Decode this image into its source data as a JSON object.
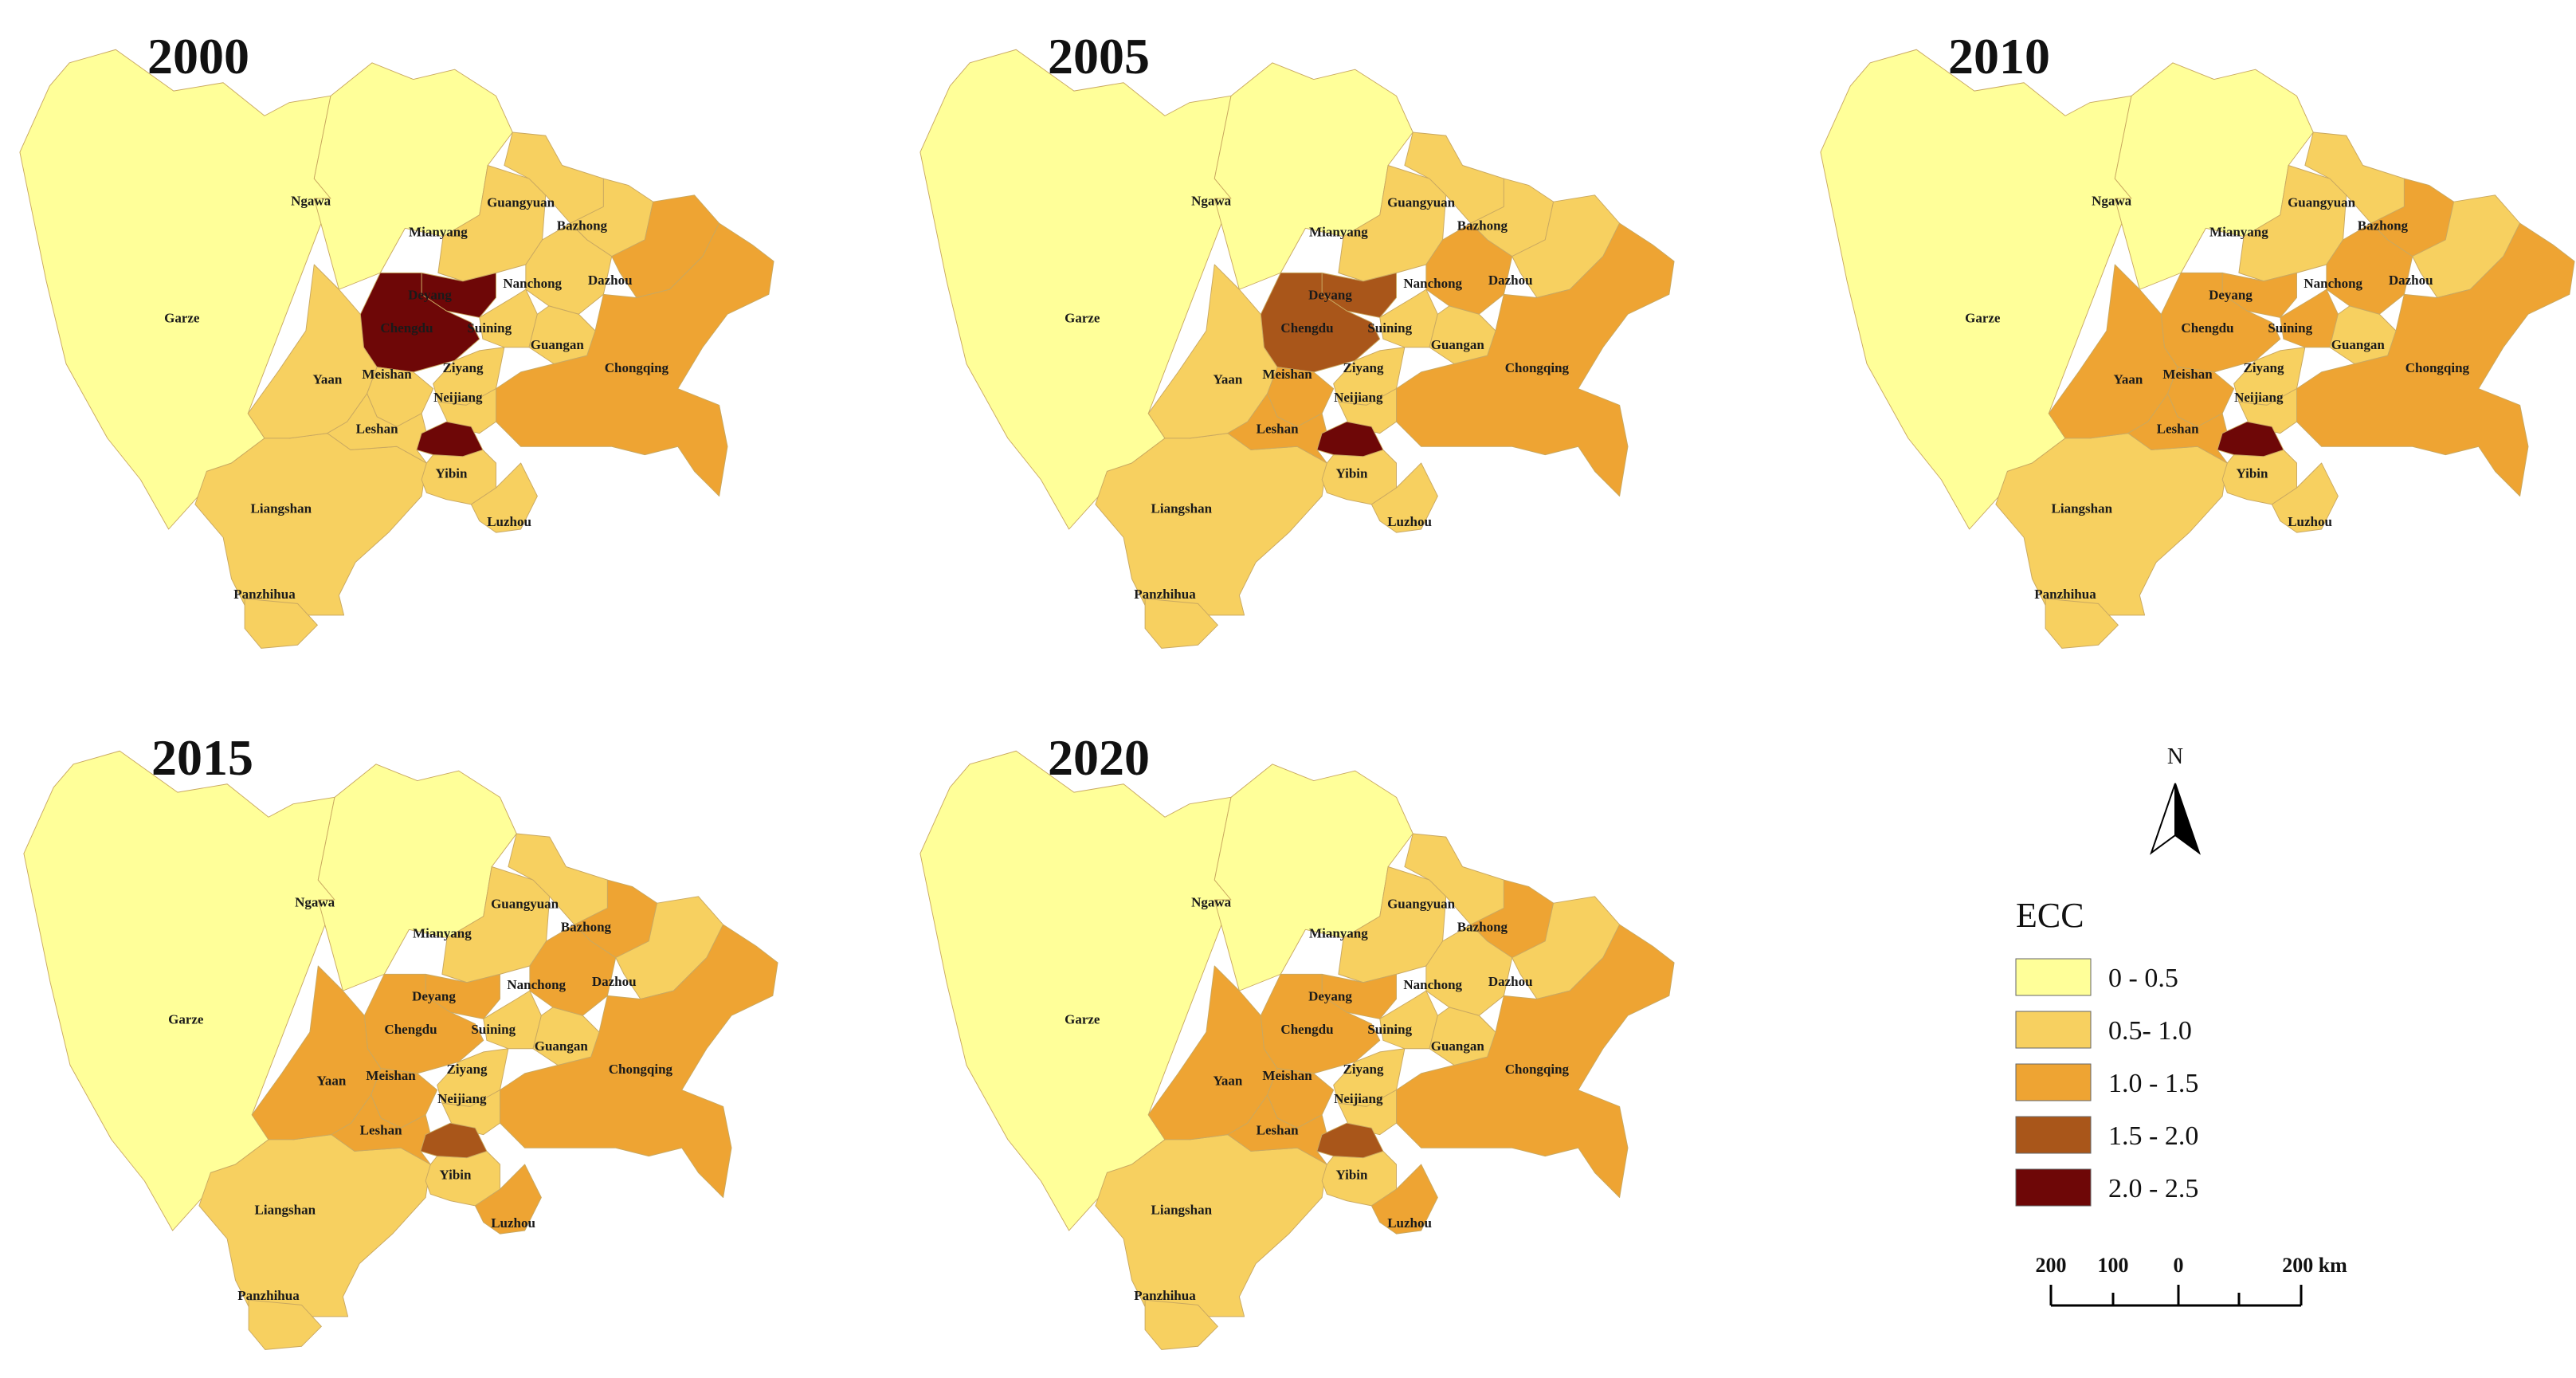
{
  "colors": {
    "c0": "#ffff99",
    "c1": "#f7d060",
    "c2": "#eea433",
    "c3": "#a9561a",
    "c4": "#6e0707"
  },
  "panels": [
    {
      "year": "2000",
      "classes": {
        "Garze": "c0",
        "Ngawa": "c0",
        "Liangshan": "c1",
        "Panzhihua": "c1",
        "Mianyang": "c1",
        "Guangyuan": "c1",
        "Bazhong": "c1",
        "Nanchong": "c1",
        "Dazhou": "c2",
        "Deyang": "c4",
        "Chengdu": "c4",
        "Suining": "c1",
        "Guangan": "c1",
        "Chongqing": "c2",
        "Yaan": "c1",
        "Meishan": "c1",
        "Ziyang": "c1",
        "Neijiang": "c1",
        "Leshan": "c1",
        "Zigong": "c4",
        "Yibin": "c1",
        "Luzhou": "c1"
      }
    },
    {
      "year": "2005",
      "classes": {
        "Garze": "c0",
        "Ngawa": "c0",
        "Liangshan": "c1",
        "Panzhihua": "c1",
        "Mianyang": "c1",
        "Guangyuan": "c1",
        "Bazhong": "c1",
        "Nanchong": "c2",
        "Dazhou": "c1",
        "Deyang": "c3",
        "Chengdu": "c3",
        "Suining": "c1",
        "Guangan": "c1",
        "Chongqing": "c2",
        "Yaan": "c1",
        "Meishan": "c2",
        "Ziyang": "c1",
        "Neijiang": "c1",
        "Leshan": "c2",
        "Zigong": "c4",
        "Yibin": "c1",
        "Luzhou": "c1"
      }
    },
    {
      "year": "2010",
      "classes": {
        "Garze": "c0",
        "Ngawa": "c0",
        "Liangshan": "c1",
        "Panzhihua": "c1",
        "Mianyang": "c1",
        "Guangyuan": "c1",
        "Bazhong": "c2",
        "Nanchong": "c2",
        "Dazhou": "c1",
        "Deyang": "c2",
        "Chengdu": "c2",
        "Suining": "c2",
        "Guangan": "c1",
        "Chongqing": "c2",
        "Yaan": "c2",
        "Meishan": "c2",
        "Ziyang": "c1",
        "Neijiang": "c1",
        "Leshan": "c2",
        "Zigong": "c4",
        "Yibin": "c1",
        "Luzhou": "c1"
      }
    },
    {
      "year": "2015",
      "classes": {
        "Garze": "c0",
        "Ngawa": "c0",
        "Liangshan": "c1",
        "Panzhihua": "c1",
        "Mianyang": "c1",
        "Guangyuan": "c1",
        "Bazhong": "c2",
        "Nanchong": "c2",
        "Dazhou": "c1",
        "Deyang": "c2",
        "Chengdu": "c2",
        "Suining": "c1",
        "Guangan": "c1",
        "Chongqing": "c2",
        "Yaan": "c2",
        "Meishan": "c2",
        "Ziyang": "c1",
        "Neijiang": "c1",
        "Leshan": "c2",
        "Zigong": "c3",
        "Yibin": "c1",
        "Luzhou": "c2"
      }
    },
    {
      "year": "2020",
      "classes": {
        "Garze": "c0",
        "Ngawa": "c0",
        "Liangshan": "c1",
        "Panzhihua": "c1",
        "Mianyang": "c1",
        "Guangyuan": "c1",
        "Bazhong": "c2",
        "Nanchong": "c1",
        "Dazhou": "c1",
        "Deyang": "c2",
        "Chengdu": "c2",
        "Suining": "c1",
        "Guangan": "c1",
        "Chongqing": "c2",
        "Yaan": "c2",
        "Meishan": "c2",
        "Ziyang": "c1",
        "Neijiang": "c1",
        "Leshan": "c2",
        "Zigong": "c3",
        "Yibin": "c1",
        "Luzhou": "c2"
      }
    }
  ],
  "legend": {
    "title": "ECC",
    "items": [
      {
        "label": "0 - 0.5",
        "cls": "c0"
      },
      {
        "label": "0.5- 1.0",
        "cls": "c1"
      },
      {
        "label": "1.0 - 1.5",
        "cls": "c2"
      },
      {
        "label": "1.5 - 2.0",
        "cls": "c3"
      },
      {
        "label": "2.0 - 2.5",
        "cls": "c4"
      }
    ]
  },
  "north_arrow": {
    "label": "N"
  },
  "scale_bar": {
    "labels": [
      "200",
      "100",
      "0",
      "200 km"
    ]
  }
}
